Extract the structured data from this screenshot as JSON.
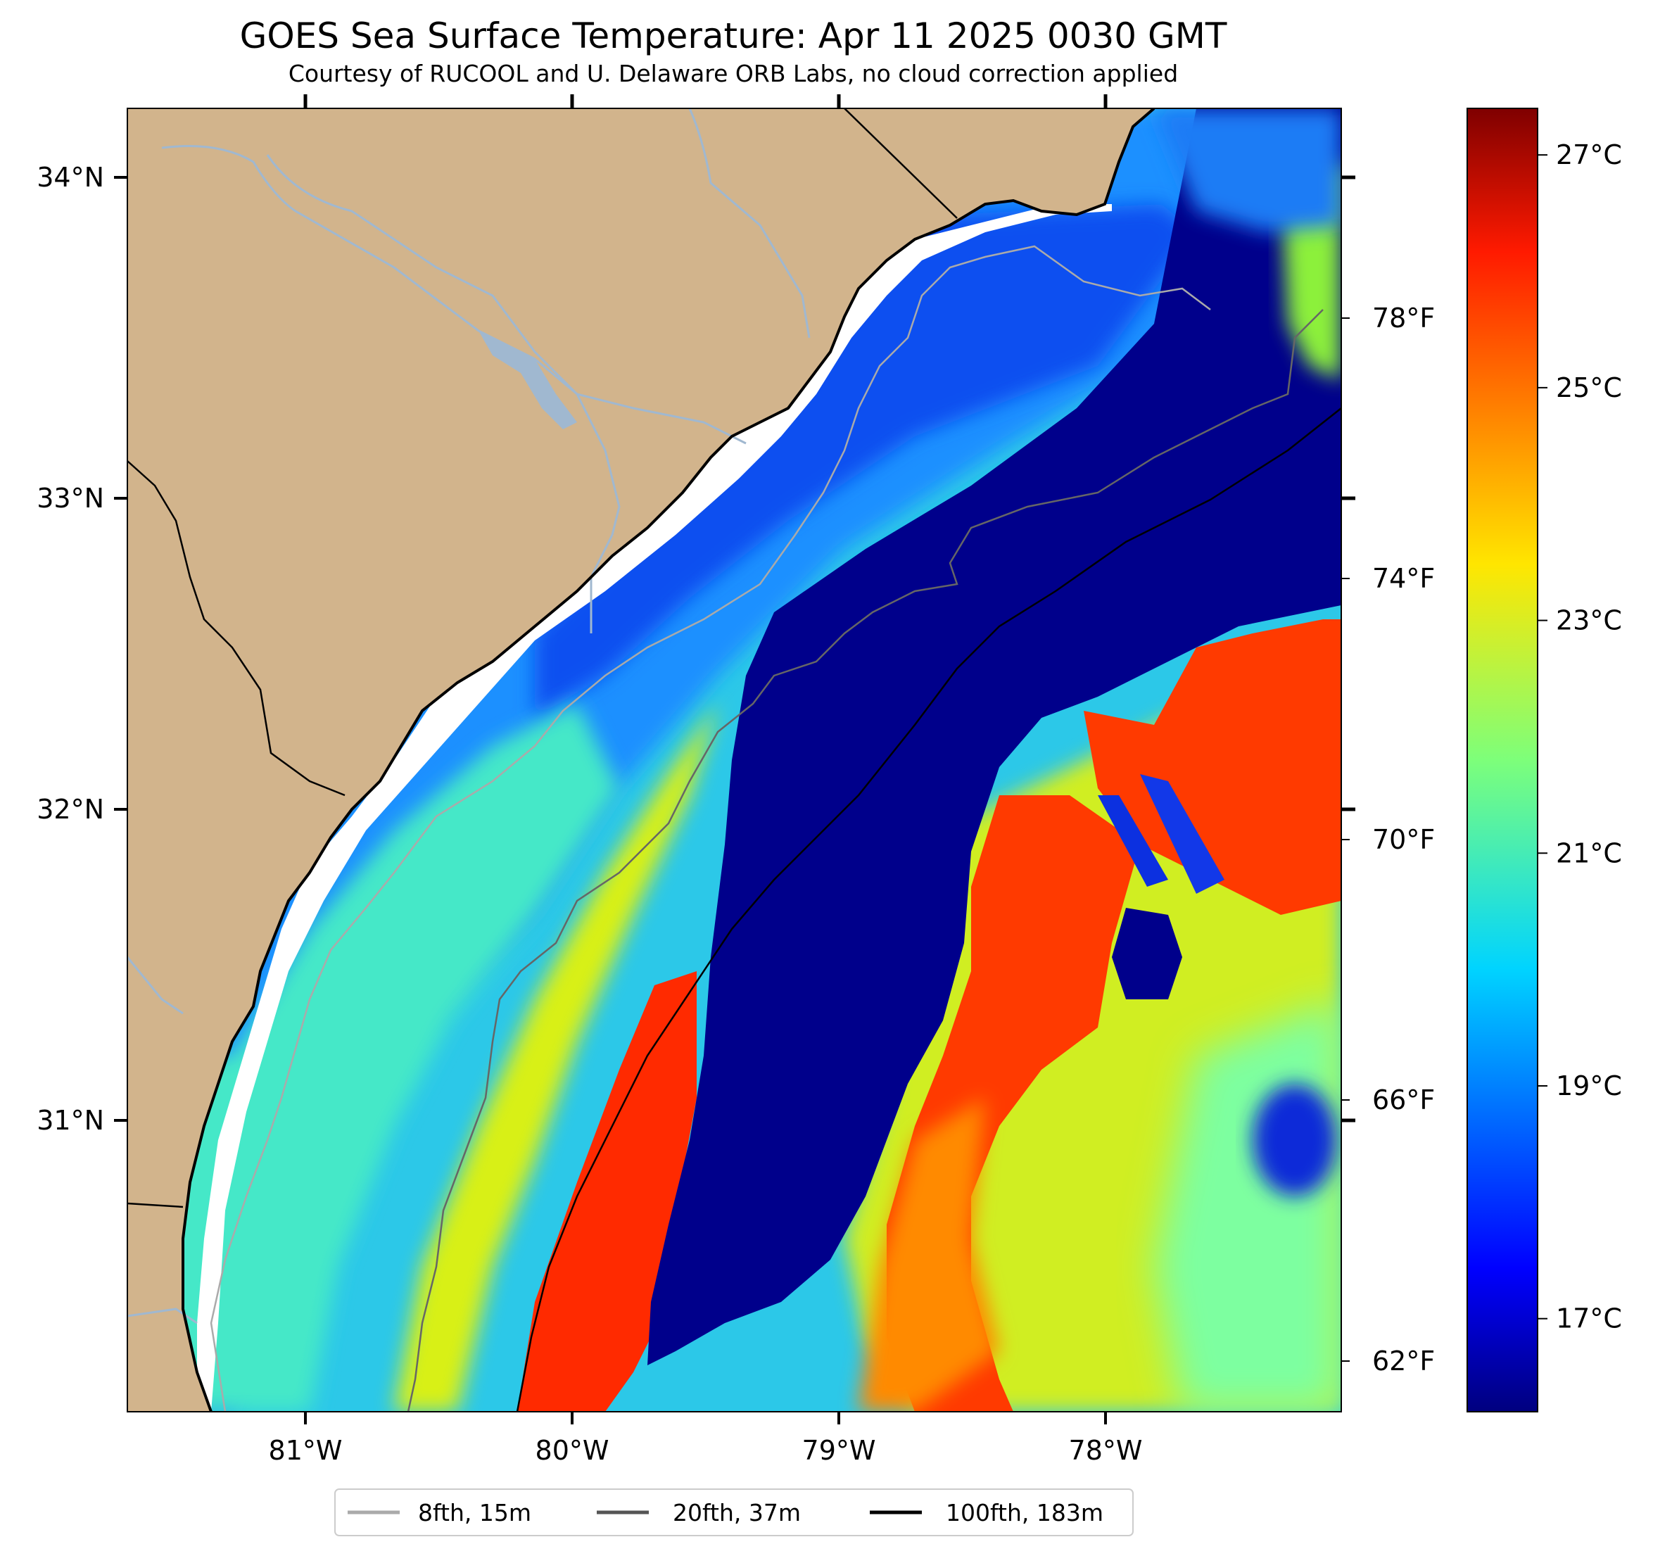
{
  "title": "GOES Sea Surface Temperature: Apr 11 2025 0030 GMT",
  "subtitle": "Courtesy of RUCOOL and U. Delaware ORB Labs, no cloud correction applied",
  "map": {
    "lon_range": [
      -81.67,
      -77.12
    ],
    "lat_range": [
      30.1,
      34.22
    ],
    "lat_ticks": [
      "34°N",
      "33°N",
      "32°N",
      "31°N"
    ],
    "lon_ticks": [
      "81°W",
      "80°W",
      "79°W",
      "78°W"
    ],
    "fahrenheit_ticks": [
      "78°F",
      "74°F",
      "70°F",
      "66°F",
      "62°F"
    ],
    "land_color": "#d2b48c",
    "river_color": "#a0b8d0",
    "colormap": "jet"
  },
  "colorbar": {
    "min_c": 16.2,
    "max_c": 27.4,
    "ticks_c": [
      "27°C",
      "25°C",
      "23°C",
      "21°C",
      "19°C",
      "17°C"
    ]
  },
  "legend": [
    {
      "label": "8fth, 15m",
      "color": "#aaaaaa"
    },
    {
      "label": "20fth, 37m",
      "color": "#555555"
    },
    {
      "label": "100fth, 183m",
      "color": "#000000"
    }
  ]
}
